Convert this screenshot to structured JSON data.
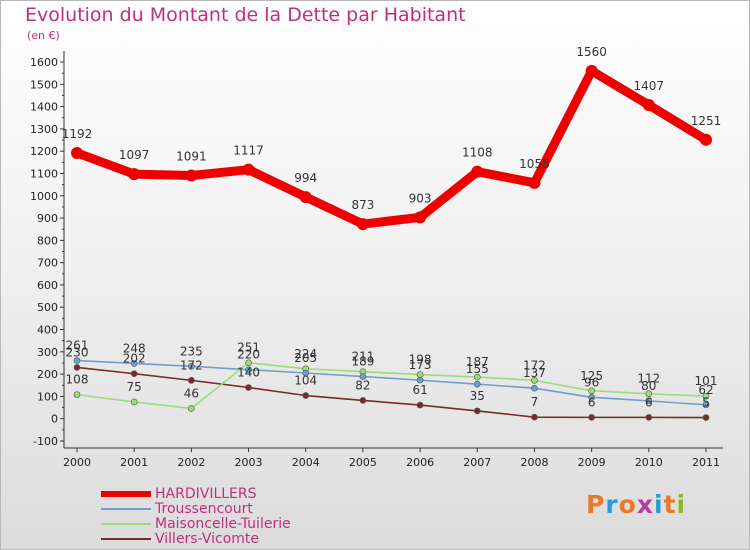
{
  "header": {
    "title": "Evolution du Montant de la Dette par Habitant",
    "unit": "(en €)"
  },
  "logo": {
    "text": "Proxiti",
    "colors": [
      "#e8782a",
      "#2a9ad8",
      "#e8782a",
      "#b23ea0",
      "#2a9ad8",
      "#e8782a",
      "#8ab82a"
    ]
  },
  "chart_data": {
    "type": "line",
    "title": "Evolution du Montant de la Dette par Habitant",
    "ylabel": "(en €)",
    "x": [
      "2000",
      "2001",
      "2002",
      "2003",
      "2004",
      "2005",
      "2006",
      "2007",
      "2008",
      "2009",
      "2010",
      "2011"
    ],
    "ylim": [
      -100,
      1600
    ],
    "yticks": [
      -100,
      0,
      100,
      200,
      300,
      400,
      500,
      600,
      700,
      800,
      900,
      1000,
      1100,
      1200,
      1300,
      1400,
      1500,
      1600
    ],
    "grid": false,
    "legend_position": "bottom-left",
    "series": [
      {
        "name": "HARDIVILLERS",
        "color": "#ee0000",
        "values": [
          1192,
          1097,
          1091,
          1117,
          994,
          873,
          903,
          1108,
          1058,
          1560,
          1407,
          1251
        ]
      },
      {
        "name": "Troussencourt",
        "color": "#6f9fd0",
        "values": [
          261,
          248,
          235,
          220,
          205,
          189,
          173,
          155,
          137,
          96,
          80,
          62
        ]
      },
      {
        "name": "Maisoncelle-Tuilerie",
        "color": "#99dd77",
        "values": [
          108,
          75,
          46,
          251,
          224,
          211,
          198,
          187,
          172,
          125,
          112,
          101
        ]
      },
      {
        "name": "Villers-Vicomte",
        "color": "#7a2a2a",
        "values": [
          230,
          202,
          172,
          140,
          104,
          82,
          61,
          35,
          7,
          6,
          6,
          5
        ]
      }
    ]
  }
}
